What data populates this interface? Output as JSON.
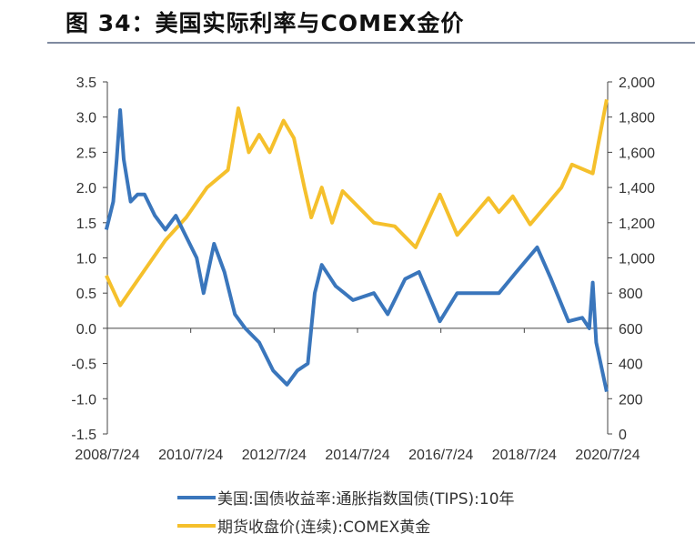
{
  "title": "图 34：美国实际利率与COMEX金价",
  "chart_data": {
    "type": "line",
    "title": "图 34：美国实际利率与COMEX金价",
    "x_ticks": [
      "2008/7/24",
      "2010/7/24",
      "2012/7/24",
      "2014/7/24",
      "2016/7/24",
      "2018/7/24",
      "2020/7/24"
    ],
    "x_range": [
      "2008-07-24",
      "2020-07-24"
    ],
    "y_left": {
      "range": [
        -1.5,
        3.5
      ],
      "ticks": [
        "3.5",
        "3.0",
        "2.5",
        "2.0",
        "1.5",
        "1.0",
        "0.5",
        "0.0",
        "-0.5",
        "-1.0",
        "-1.5"
      ]
    },
    "y_right": {
      "range": [
        0,
        2000
      ],
      "ticks": [
        "2,000",
        "1,800",
        "1,600",
        "1,400",
        "1,200",
        "1,000",
        "800",
        "600",
        "400",
        "200",
        "0"
      ]
    },
    "grid": false,
    "legend_position": "bottom",
    "series": [
      {
        "name": "美国:国债收益率:通胀指数国债(TIPS):10年",
        "axis": "left",
        "color": "#3a76bc",
        "x": [
          "2008-07",
          "2008-09",
          "2008-10",
          "2008-11",
          "2008-12",
          "2009-02",
          "2009-04",
          "2009-06",
          "2009-09",
          "2009-12",
          "2010-03",
          "2010-06",
          "2010-09",
          "2010-11",
          "2011-02",
          "2011-05",
          "2011-08",
          "2011-11",
          "2012-03",
          "2012-07",
          "2012-11",
          "2013-02",
          "2013-05",
          "2013-07",
          "2013-09",
          "2014-01",
          "2014-06",
          "2014-12",
          "2015-04",
          "2015-09",
          "2016-01",
          "2016-07",
          "2016-12",
          "2017-06",
          "2017-12",
          "2018-05",
          "2018-11",
          "2019-03",
          "2019-08",
          "2019-12",
          "2020-02",
          "2020-03",
          "2020-04",
          "2020-07"
        ],
        "values": [
          1.4,
          1.8,
          2.4,
          3.1,
          2.4,
          1.8,
          1.9,
          1.9,
          1.6,
          1.4,
          1.6,
          1.3,
          1.0,
          0.5,
          1.2,
          0.8,
          0.2,
          0.0,
          -0.2,
          -0.6,
          -0.8,
          -0.6,
          -0.5,
          0.5,
          0.9,
          0.6,
          0.4,
          0.5,
          0.2,
          0.7,
          0.8,
          0.1,
          0.5,
          0.5,
          0.5,
          0.8,
          1.15,
          0.7,
          0.1,
          0.15,
          0.0,
          0.65,
          -0.2,
          -0.9
        ]
      },
      {
        "name": "期货收盘价(连续):COMEX黄金",
        "axis": "right",
        "color": "#f5c02c",
        "x": [
          "2008-07",
          "2008-11",
          "2009-06",
          "2009-12",
          "2010-06",
          "2010-12",
          "2011-06",
          "2011-09",
          "2011-12",
          "2012-03",
          "2012-06",
          "2012-10",
          "2013-01",
          "2013-04",
          "2013-06",
          "2013-09",
          "2013-12",
          "2014-03",
          "2014-12",
          "2015-06",
          "2015-12",
          "2016-07",
          "2016-12",
          "2017-09",
          "2017-12",
          "2018-04",
          "2018-09",
          "2019-06",
          "2019-09",
          "2020-03",
          "2020-07"
        ],
        "values": [
          900,
          730,
          930,
          1100,
          1230,
          1400,
          1500,
          1850,
          1600,
          1700,
          1600,
          1780,
          1680,
          1400,
          1230,
          1400,
          1200,
          1380,
          1200,
          1180,
          1060,
          1360,
          1130,
          1340,
          1260,
          1350,
          1190,
          1400,
          1530,
          1480,
          1900
        ]
      }
    ]
  }
}
